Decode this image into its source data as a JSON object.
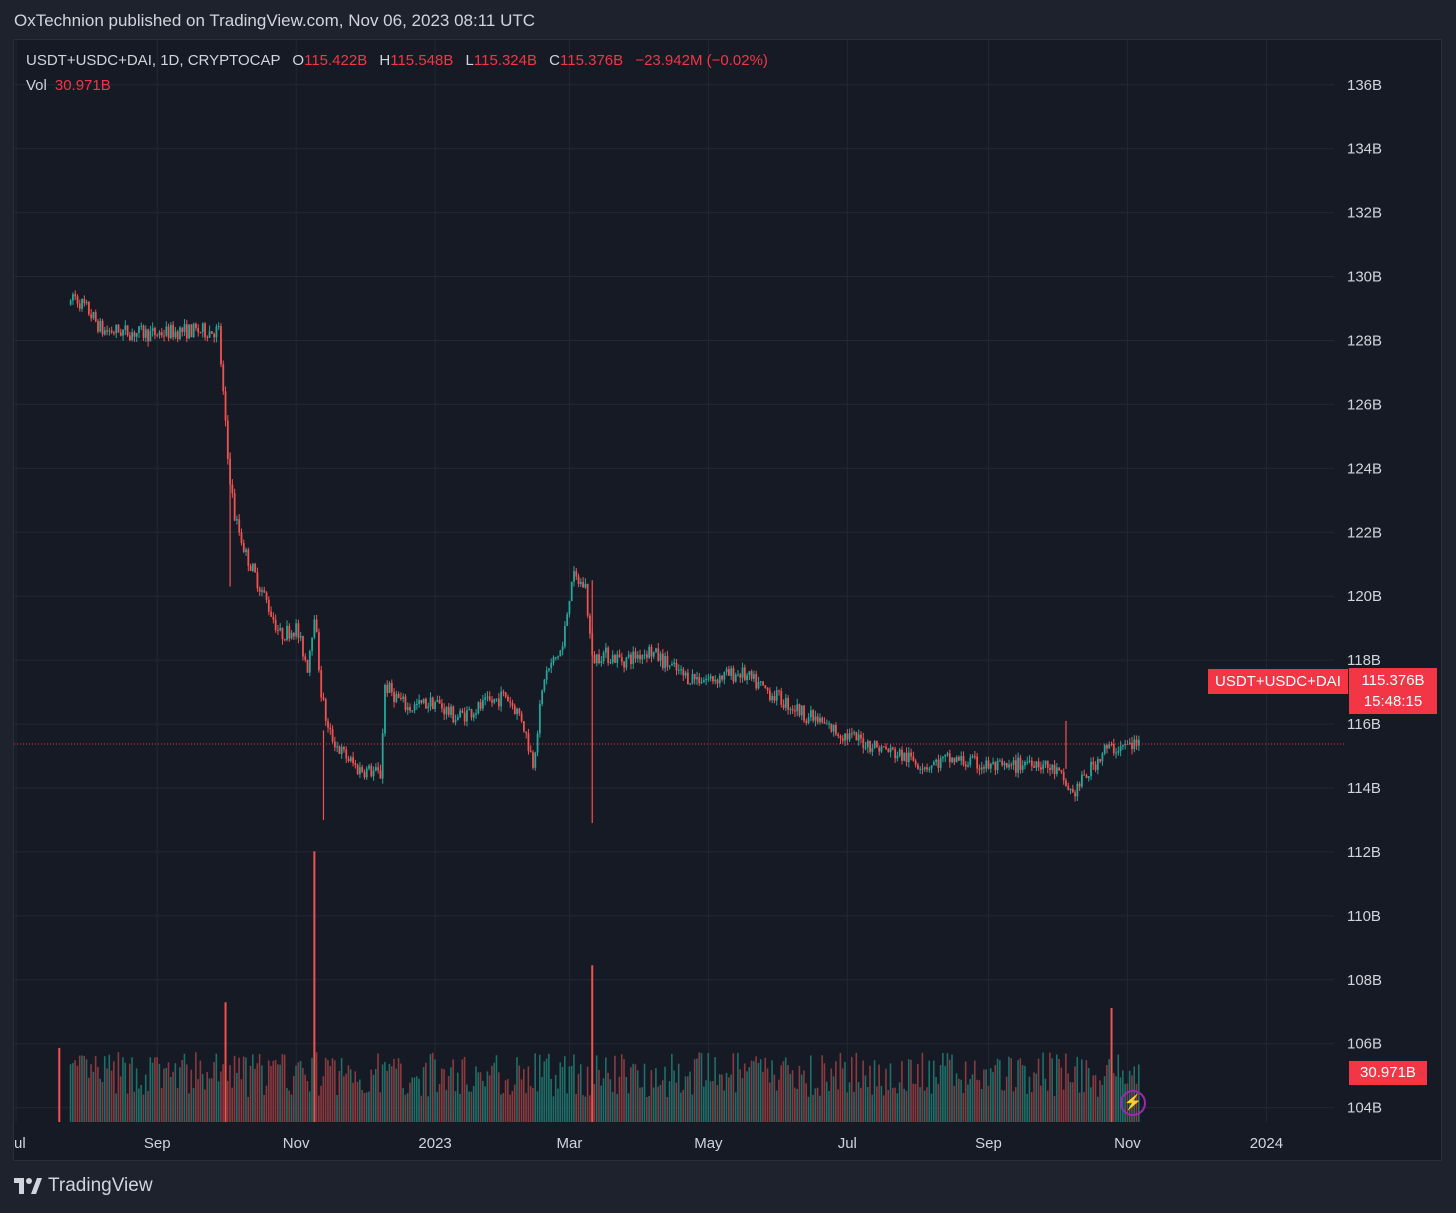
{
  "header": {
    "published": "OxTechnion published on TradingView.com, Nov 06, 2023 08:11 UTC"
  },
  "legend": {
    "symbol": "USDT+USDC+DAI, 1D, CRYPTOCAP",
    "open_label": "O",
    "open": "115.422B",
    "high_label": "H",
    "high": "115.548B",
    "low_label": "L",
    "low": "115.324B",
    "close_label": "C",
    "close": "115.376B",
    "change": "−23.942M (−0.02%)",
    "vol_label": "Vol",
    "vol": "30.971B"
  },
  "price_tag": {
    "name": "USDT+USDC+DAI",
    "value": "115.376B",
    "countdown": "15:48:15"
  },
  "vol_tag": "30.971B",
  "footer": {
    "brand": "TradingView"
  },
  "colors": {
    "up": "#26a69a",
    "down": "#ef5350",
    "accent": "#f23645",
    "grid": "#232734",
    "bg": "#161a25"
  },
  "chart_data": {
    "type": "candlestick",
    "y_ticks": [
      "136B",
      "134B",
      "132B",
      "130B",
      "128B",
      "126B",
      "124B",
      "122B",
      "120B",
      "118B",
      "116B",
      "114B",
      "112B",
      "110B",
      "108B",
      "106B",
      "104B"
    ],
    "x_ticks": [
      "ul",
      "Sep",
      "Nov",
      "2023",
      "Mar",
      "May",
      "Jul",
      "Sep",
      "Nov",
      "2024"
    ],
    "ylim": [
      102.3,
      137.4
    ],
    "last_price": 115.376,
    "close_path": [
      [
        "2022-07-25",
        129.5
      ],
      [
        "2022-08-01",
        129.0
      ],
      [
        "2022-08-08",
        128.3
      ],
      [
        "2022-08-15",
        128.3
      ],
      [
        "2022-08-29",
        128.2
      ],
      [
        "2022-09-12",
        128.3
      ],
      [
        "2022-09-28",
        128.3
      ],
      [
        "2022-10-02",
        124.3
      ],
      [
        "2022-10-05",
        122.5
      ],
      [
        "2022-10-10",
        121.3
      ],
      [
        "2022-10-18",
        120.0
      ],
      [
        "2022-10-25",
        118.8
      ],
      [
        "2022-11-01",
        119.0
      ],
      [
        "2022-11-06",
        117.8
      ],
      [
        "2022-11-09",
        119.5
      ],
      [
        "2022-11-12",
        117.0
      ],
      [
        "2022-11-15",
        115.8
      ],
      [
        "2022-11-20",
        115.2
      ],
      [
        "2022-11-28",
        114.6
      ],
      [
        "2022-12-05",
        114.5
      ],
      [
        "2022-12-08",
        114.4
      ],
      [
        "2022-12-10",
        117.2
      ],
      [
        "2022-12-20",
        116.5
      ],
      [
        "2023-01-01",
        116.7
      ],
      [
        "2023-01-10",
        116.2
      ],
      [
        "2023-01-20",
        116.5
      ],
      [
        "2023-02-01",
        116.9
      ],
      [
        "2023-02-08",
        116.2
      ],
      [
        "2023-02-13",
        114.8
      ],
      [
        "2023-02-18",
        117.5
      ],
      [
        "2023-02-26",
        118.4
      ],
      [
        "2023-03-02",
        120.6
      ],
      [
        "2023-03-08",
        120.3
      ],
      [
        "2023-03-11",
        118.0
      ],
      [
        "2023-03-15",
        118.2
      ],
      [
        "2023-03-25",
        118.0
      ],
      [
        "2023-04-05",
        118.3
      ],
      [
        "2023-04-20",
        117.5
      ],
      [
        "2023-05-01",
        117.4
      ],
      [
        "2023-05-15",
        117.6
      ],
      [
        "2023-06-01",
        116.8
      ],
      [
        "2023-06-15",
        116.2
      ],
      [
        "2023-06-28",
        115.7
      ],
      [
        "2023-07-10",
        115.4
      ],
      [
        "2023-07-25",
        115.0
      ],
      [
        "2023-08-05",
        114.7
      ],
      [
        "2023-08-15",
        114.9
      ],
      [
        "2023-08-30",
        114.7
      ],
      [
        "2023-09-10",
        114.6
      ],
      [
        "2023-09-20",
        114.9
      ],
      [
        "2023-10-01",
        114.5
      ],
      [
        "2023-10-08",
        113.8
      ],
      [
        "2023-10-15",
        114.5
      ],
      [
        "2023-10-22",
        115.2
      ],
      [
        "2023-11-06",
        115.376
      ]
    ],
    "spikes": [
      {
        "date": "2022-11-13",
        "high": 115.8,
        "low": 113.0
      },
      {
        "date": "2023-03-11",
        "high": 120.5,
        "low": 112.9
      },
      {
        "date": "2023-10-05",
        "high": 116.1,
        "low": 114.6
      },
      {
        "date": "2022-10-03",
        "high": 124.5,
        "low": 120.3
      }
    ],
    "volume_spikes": [
      {
        "date": "2022-11-09",
        "rel": 0.95
      },
      {
        "date": "2023-03-11",
        "rel": 0.55
      },
      {
        "date": "2022-10-01",
        "rel": 0.42
      },
      {
        "date": "2023-10-25",
        "rel": 0.4
      },
      {
        "date": "2022-07-20",
        "rel": 0.26
      }
    ]
  }
}
